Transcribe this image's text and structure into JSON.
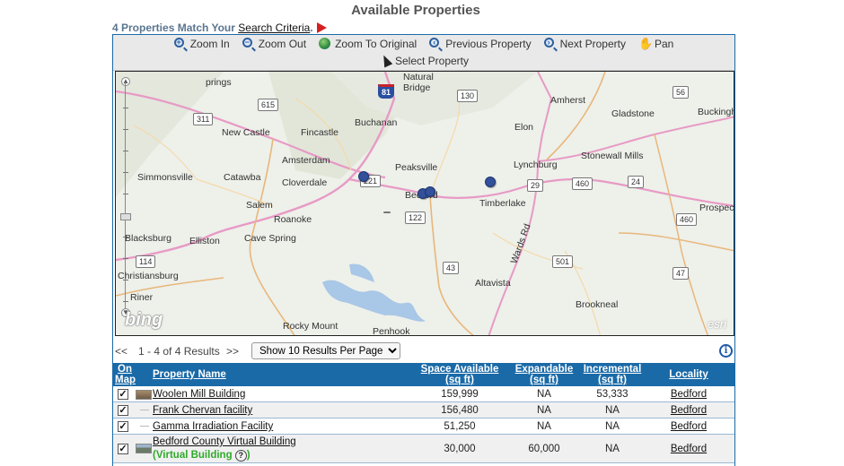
{
  "page": {
    "title": "Available Properties",
    "match_prefix": "4 Properties Match Your ",
    "criteria_link": "Search Criteria",
    "match_suffix": "."
  },
  "toolbar": {
    "row1": [
      {
        "label": "Zoom In",
        "icon": "zoom-in-icon"
      },
      {
        "label": "Zoom Out",
        "icon": "zoom-out-icon"
      },
      {
        "label": "Zoom To Original",
        "icon": "globe-icon"
      },
      {
        "label": "Previous Property",
        "icon": "previous-property-icon"
      },
      {
        "label": "Next Property",
        "icon": "next-property-icon"
      },
      {
        "label": "Pan",
        "icon": "pan-hand-icon"
      }
    ],
    "row2": [
      {
        "label": "Select Property",
        "icon": "select-arrow-icon"
      }
    ]
  },
  "map": {
    "places": [
      {
        "name": "prings"
      },
      {
        "name": "Natural"
      },
      {
        "name": "Bridge"
      },
      {
        "name": "Amherst"
      },
      {
        "name": "Gladstone"
      },
      {
        "name": "Buckingh"
      },
      {
        "name": "Buchanan"
      },
      {
        "name": "New Castle"
      },
      {
        "name": "Fincastle"
      },
      {
        "name": "Elon"
      },
      {
        "name": "Amsterdam"
      },
      {
        "name": "Peaksville"
      },
      {
        "name": "Lynchburg"
      },
      {
        "name": "Stonewall Mills"
      },
      {
        "name": "Simmonsville"
      },
      {
        "name": "Catawba"
      },
      {
        "name": "Cloverdale"
      },
      {
        "name": "Bedford"
      },
      {
        "name": "Timberlake"
      },
      {
        "name": "Salem"
      },
      {
        "name": "Roanoke"
      },
      {
        "name": "Prospec"
      },
      {
        "name": "Blacksburg"
      },
      {
        "name": "Elliston"
      },
      {
        "name": "Cave Spring"
      },
      {
        "name": "Christiansburg"
      },
      {
        "name": "Altavista"
      },
      {
        "name": "Riner"
      },
      {
        "name": "Brookneal"
      },
      {
        "name": "Rocky Mount"
      },
      {
        "name": "Penhook"
      },
      {
        "name": "Wards Rd"
      }
    ],
    "shields": [
      "81",
      "130",
      "56",
      "311",
      "615",
      "29",
      "460",
      "24",
      "221",
      "122",
      "460",
      "114",
      "43",
      "501",
      "47",
      "221"
    ],
    "bing_logo": "bing",
    "esri_logo": "esri"
  },
  "pager": {
    "prev": "<<",
    "count": "1 - 4 of 4 Results",
    "next": ">>",
    "per_page_selected": "Show 10 Results Per Page",
    "info_icon": "i"
  },
  "results": {
    "headers": {
      "on_map_1": "On",
      "on_map_2": "Map",
      "name": "Property Name",
      "space_1": "Space Available",
      "space_2": "(sq ft)",
      "expandable_1": "Expandable",
      "expandable_2": "(sq ft)",
      "incremental_1": "Incremental",
      "incremental_2": "(sq ft)",
      "locality": "Locality"
    },
    "rows": [
      {
        "checked": "✓",
        "name": "Woolen Mill Building",
        "space": "159,999",
        "expandable": "NA",
        "incremental": "53,333",
        "locality": "Bedford"
      },
      {
        "checked": "✓",
        "name": "Frank Chervan facility",
        "space": "156,480",
        "expandable": "NA",
        "incremental": "NA",
        "locality": "Bedford"
      },
      {
        "checked": "✓",
        "name": "Gamma Irradiation Facility",
        "space": "51,250",
        "expandable": "NA",
        "incremental": "NA",
        "locality": "Bedford"
      },
      {
        "checked": "✓",
        "name": "Bedford County Virtual Building",
        "virtual_label": "(Virtual Building",
        "help": "?",
        "close_paren": ")",
        "space": "30,000",
        "expandable": "60,000",
        "incremental": "NA",
        "locality": "Bedford"
      }
    ]
  }
}
